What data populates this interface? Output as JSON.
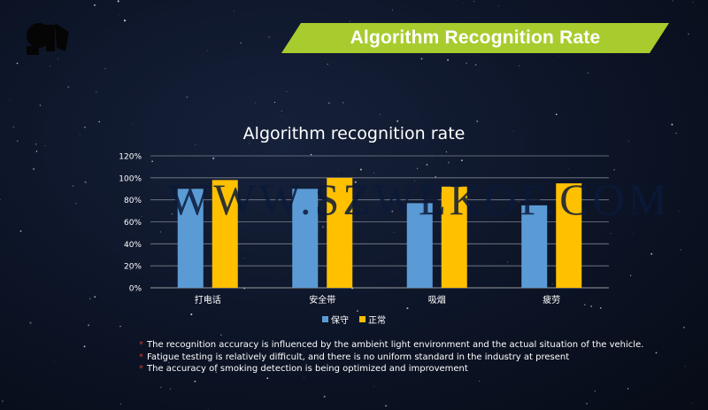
{
  "header": {
    "banner_title": "Algorithm Recognition Rate"
  },
  "watermark": "WWW.SZWEKOF.COM",
  "colors": {
    "banner": "#a8cc2e",
    "series_1": "#5b9bd5",
    "series_2": "#ffc000",
    "note_marker": "#e0302b"
  },
  "chart_data": {
    "type": "bar",
    "title": "Algorithm recognition rate",
    "categories": [
      "打电话",
      "安全带",
      "吸烟",
      "疲劳"
    ],
    "series": [
      {
        "name": "保守",
        "values": [
          90,
          90,
          77,
          75
        ]
      },
      {
        "name": "正常",
        "values": [
          98,
          100,
          92,
          95
        ]
      }
    ],
    "yticks": [
      "0%",
      "20%",
      "40%",
      "60%",
      "80%",
      "100%",
      "120%"
    ],
    "ylim": [
      0,
      120
    ],
    "grid": true,
    "legend_position": "bottom"
  },
  "notes": {
    "marker": "*",
    "items": [
      "The recognition accuracy is influenced by the ambient light environment and the actual situation of the vehicle.",
      "Fatigue testing is relatively difficult, and there is no uniform standard in the industry at present",
      "The accuracy of smoking detection is being optimized and improvement"
    ]
  }
}
